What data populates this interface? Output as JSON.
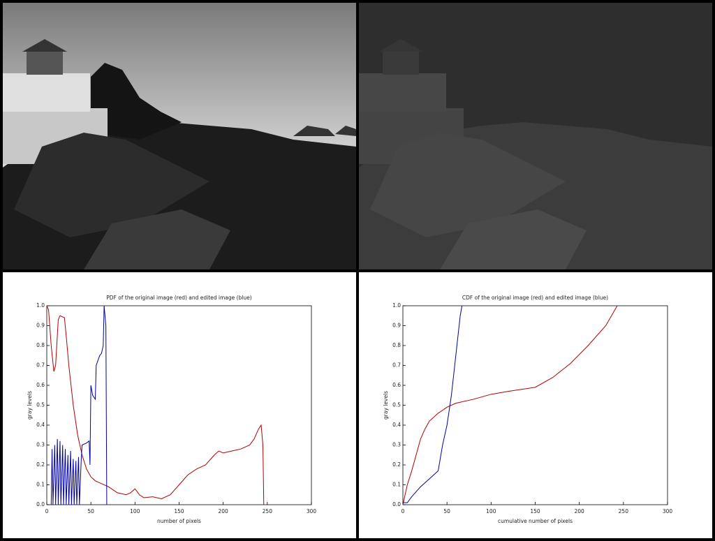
{
  "chart_data": [
    {
      "type": "line",
      "title": "PDF of the original image (red) and edited image (blue)",
      "x_label": "number of pixels",
      "y_label": "gray levels",
      "xlim": [
        0,
        300
      ],
      "ylim": [
        0,
        1
      ],
      "xticks": [
        0,
        50,
        100,
        150,
        200,
        250,
        300
      ],
      "yticks": [
        {
          "value": 0,
          "label": "0.0"
        },
        0.1,
        0.2,
        0.3,
        0.4,
        0.5,
        0.6,
        0.7,
        0.8,
        0.9,
        {
          "value": 1,
          "label": "1.0"
        }
      ],
      "series": [
        {
          "color": "#b00000",
          "x": [
            0,
            2,
            5,
            8,
            10,
            13,
            15,
            20,
            22,
            25,
            30,
            35,
            40,
            45,
            50,
            55,
            60,
            70,
            80,
            90,
            95,
            100,
            105,
            110,
            120,
            130,
            140,
            150,
            160,
            170,
            180,
            190,
            195,
            200,
            210,
            220,
            230,
            235,
            240,
            243,
            245,
            246
          ],
          "values": [
            1.0,
            0.98,
            0.8,
            0.67,
            0.7,
            0.93,
            0.95,
            0.94,
            0.85,
            0.7,
            0.5,
            0.35,
            0.25,
            0.18,
            0.14,
            0.12,
            0.11,
            0.09,
            0.06,
            0.05,
            0.06,
            0.08,
            0.05,
            0.035,
            0.04,
            0.03,
            0.05,
            0.1,
            0.15,
            0.18,
            0.2,
            0.25,
            0.27,
            0.26,
            0.27,
            0.28,
            0.3,
            0.33,
            0.38,
            0.4,
            0.3,
            0
          ]
        },
        {
          "color": "#0000a0",
          "x": [
            5,
            6,
            7,
            9,
            10,
            12,
            13,
            15,
            16,
            18,
            19,
            21,
            22,
            24,
            25,
            27,
            28,
            30,
            31,
            33,
            34,
            36,
            37,
            39,
            40,
            45,
            48,
            49,
            50,
            52,
            55,
            56,
            60,
            62,
            64,
            65,
            67,
            68
          ],
          "values": [
            0,
            0.28,
            0,
            0.3,
            0,
            0.33,
            0,
            0.32,
            0,
            0.3,
            0,
            0.28,
            0,
            0.25,
            0,
            0.27,
            0,
            0.23,
            0,
            0.22,
            0,
            0.24,
            0,
            0.22,
            0.3,
            0.31,
            0.32,
            0.2,
            0.6,
            0.55,
            0.53,
            0.7,
            0.75,
            0.76,
            0.8,
            1.0,
            0.9,
            0
          ]
        }
      ]
    },
    {
      "type": "line",
      "title": "CDF of the original image (red) and edited image (blue)",
      "x_label": "cumulative number of pixels",
      "y_label": "gray levels",
      "xlim": [
        0,
        300
      ],
      "ylim": [
        0,
        1
      ],
      "xticks": [
        0,
        50,
        100,
        150,
        200,
        250,
        300
      ],
      "yticks": [
        {
          "value": 0,
          "label": "0.0"
        },
        0.1,
        0.2,
        0.3,
        0.4,
        0.5,
        0.6,
        0.7,
        0.8,
        0.9,
        {
          "value": 1,
          "label": "1.0"
        }
      ],
      "series": [
        {
          "color": "#b00000",
          "x": [
            0,
            5,
            10,
            15,
            20,
            25,
            30,
            40,
            50,
            60,
            80,
            100,
            120,
            150,
            170,
            190,
            210,
            230,
            243
          ],
          "values": [
            0,
            0.1,
            0.17,
            0.25,
            0.33,
            0.38,
            0.42,
            0.46,
            0.49,
            0.51,
            0.53,
            0.555,
            0.57,
            0.59,
            0.64,
            0.71,
            0.8,
            0.9,
            1.0
          ]
        },
        {
          "color": "#0000a0",
          "x": [
            0,
            5,
            10,
            20,
            30,
            40,
            45,
            50,
            55,
            60,
            65,
            67
          ],
          "values": [
            0.01,
            0.01,
            0.04,
            0.09,
            0.13,
            0.17,
            0.3,
            0.4,
            0.55,
            0.75,
            0.95,
            1.0
          ]
        }
      ]
    }
  ]
}
